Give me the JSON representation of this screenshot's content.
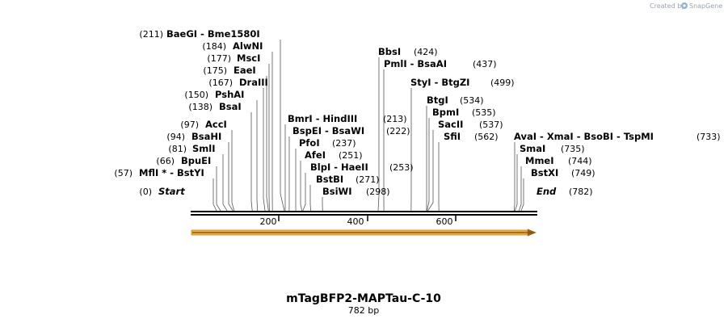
{
  "credit": "Created by",
  "brand": "SnapGene",
  "plasmid_name": "mTagBFP2-MAPTau-C-10",
  "length_label": "782 bp",
  "total_bp": 782,
  "start_label": "Start",
  "start_pos": "(0)",
  "end_label": "End",
  "end_pos": "(782)",
  "ticks": [
    "200",
    "400",
    "600"
  ],
  "feature": {
    "name": "arrow",
    "color": "#f0a830",
    "start": 0,
    "end": 782
  },
  "sites": [
    {
      "pos": 211,
      "pos_label": "(211)",
      "names": [
        "BaeGI",
        "Bme1580I"
      ]
    },
    {
      "pos": 184,
      "pos_label": "(184)",
      "names": [
        "AlwNI"
      ]
    },
    {
      "pos": 177,
      "pos_label": "(177)",
      "names": [
        "MscI"
      ]
    },
    {
      "pos": 175,
      "pos_label": "(175)",
      "names": [
        "EaeI"
      ]
    },
    {
      "pos": 167,
      "pos_label": "(167)",
      "names": [
        "DraIII"
      ]
    },
    {
      "pos": 150,
      "pos_label": "(150)",
      "names": [
        "PshAI"
      ]
    },
    {
      "pos": 138,
      "pos_label": "(138)",
      "names": [
        "BsaI"
      ]
    },
    {
      "pos": 97,
      "pos_label": "(97)",
      "names": [
        "AccI"
      ]
    },
    {
      "pos": 94,
      "pos_label": "(94)",
      "names": [
        "BsaHI"
      ]
    },
    {
      "pos": 81,
      "pos_label": "(81)",
      "names": [
        "SmlI"
      ]
    },
    {
      "pos": 66,
      "pos_label": "(66)",
      "names": [
        "BpuEI"
      ]
    },
    {
      "pos": 57,
      "pos_label": "(57)",
      "names": [
        "MflI *",
        "BstYI"
      ]
    },
    {
      "pos": 213,
      "pos_label": "(213)",
      "names": [
        "BmrI",
        "HindIII"
      ]
    },
    {
      "pos": 222,
      "pos_label": "(222)",
      "names": [
        "BspEI",
        "BsaWI"
      ]
    },
    {
      "pos": 237,
      "pos_label": "(237)",
      "names": [
        "PfoI"
      ]
    },
    {
      "pos": 251,
      "pos_label": "(251)",
      "names": [
        "AfeI"
      ]
    },
    {
      "pos": 253,
      "pos_label": "(253)",
      "names": [
        "BlpI",
        "HaeII"
      ]
    },
    {
      "pos": 271,
      "pos_label": "(271)",
      "names": [
        "BstBI"
      ]
    },
    {
      "pos": 298,
      "pos_label": "(298)",
      "names": [
        "BsiWI"
      ]
    },
    {
      "pos": 424,
      "pos_label": "(424)",
      "names": [
        "BbsI"
      ]
    },
    {
      "pos": 437,
      "pos_label": "(437)",
      "names": [
        "PmlI",
        "BsaAI"
      ]
    },
    {
      "pos": 499,
      "pos_label": "(499)",
      "names": [
        "StyI",
        "BtgZI"
      ]
    },
    {
      "pos": 534,
      "pos_label": "(534)",
      "names": [
        "BtgI"
      ]
    },
    {
      "pos": 535,
      "pos_label": "(535)",
      "names": [
        "BpmI"
      ]
    },
    {
      "pos": 537,
      "pos_label": "(537)",
      "names": [
        "SacII"
      ]
    },
    {
      "pos": 562,
      "pos_label": "(562)",
      "names": [
        "SfiI"
      ]
    },
    {
      "pos": 733,
      "pos_label": "(733)",
      "names": [
        "AvaI",
        "XmaI",
        "BsoBI",
        "TspMI"
      ]
    },
    {
      "pos": 735,
      "pos_label": "(735)",
      "names": [
        "SmaI"
      ]
    },
    {
      "pos": 744,
      "pos_label": "(744)",
      "names": [
        "MmeI"
      ]
    },
    {
      "pos": 749,
      "pos_label": "(749)",
      "names": [
        "BstXI"
      ]
    }
  ]
}
